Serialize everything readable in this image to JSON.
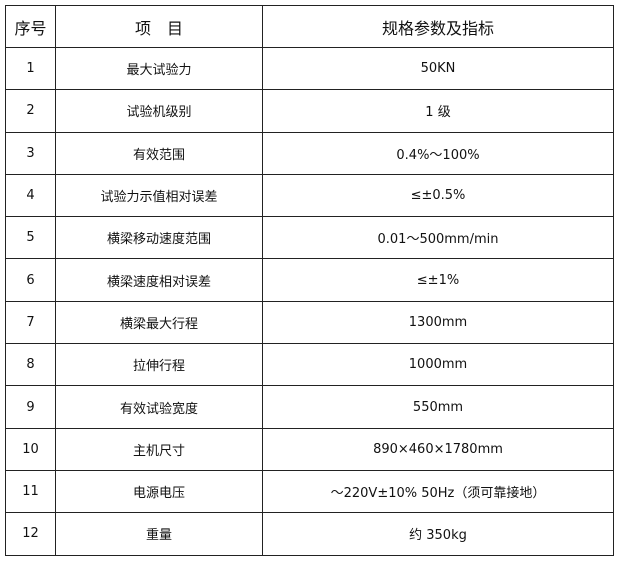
{
  "table": {
    "headers": [
      "序号",
      "项　目",
      "规格参数及指标"
    ],
    "rows": [
      [
        "1",
        "最大试验力",
        "50KN"
      ],
      [
        "2",
        "试验机级别",
        "1 级"
      ],
      [
        "3",
        "有效范围",
        "0.4%～100%"
      ],
      [
        "4",
        "试验力示值相对误差",
        "≤±0.5%"
      ],
      [
        "5",
        "横梁移动速度范围",
        "0.01～500mm/min"
      ],
      [
        "6",
        "横梁速度相对误差",
        "≤±1%"
      ],
      [
        "7",
        "横梁最大行程",
        "1300mm"
      ],
      [
        "8",
        "拉伸行程",
        "1000mm"
      ],
      [
        "9",
        "有效试验宽度",
        "550mm"
      ],
      [
        "10",
        "主机尺寸",
        "890×460×1780mm"
      ],
      [
        "11",
        "电源电压",
        "～220V±10% 50Hz（须可靠接地）"
      ],
      [
        "12",
        "重量",
        "约 350kg"
      ]
    ]
  }
}
